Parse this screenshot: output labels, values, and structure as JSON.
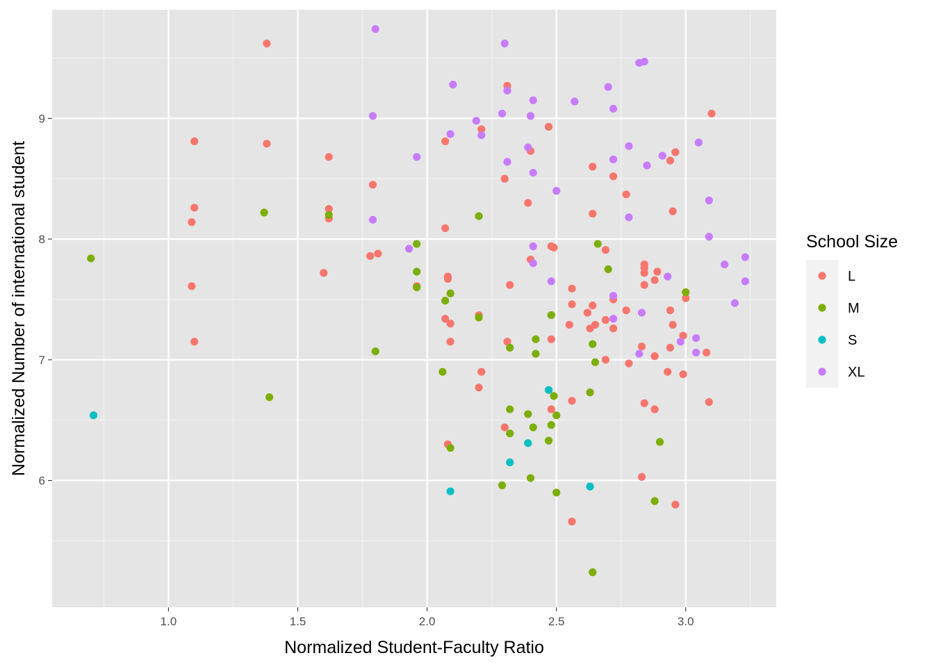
{
  "chart_data": {
    "type": "scatter",
    "xlabel": "Normalized Student-Faculty Ratio",
    "ylabel": "Normalized Number of international student",
    "xlim": [
      0.55,
      3.35
    ],
    "ylim": [
      4.95,
      9.9
    ],
    "x_ticks": [
      1.0,
      1.5,
      2.0,
      2.5,
      3.0
    ],
    "x_tick_labels": [
      "1.0",
      "1.5",
      "2.0",
      "2.5",
      "3.0"
    ],
    "y_ticks": [
      6,
      7,
      8,
      9
    ],
    "y_tick_labels": [
      "6",
      "7",
      "8",
      "9"
    ],
    "grid": true,
    "legend": {
      "title": "School Size",
      "placement": "right"
    },
    "series": [
      {
        "name": "L",
        "color": "#F8766D",
        "points": [
          [
            1.38,
            9.62
          ],
          [
            1.1,
            8.81
          ],
          [
            1.38,
            8.79
          ],
          [
            1.1,
            8.26
          ],
          [
            1.09,
            8.14
          ],
          [
            1.09,
            7.61
          ],
          [
            1.1,
            7.15
          ],
          [
            1.62,
            8.68
          ],
          [
            1.62,
            8.25
          ],
          [
            1.62,
            8.17
          ],
          [
            1.6,
            7.72
          ],
          [
            1.79,
            8.45
          ],
          [
            1.78,
            7.86
          ],
          [
            1.81,
            7.88
          ],
          [
            2.07,
            8.81
          ],
          [
            2.07,
            8.09
          ],
          [
            2.08,
            7.69
          ],
          [
            2.08,
            7.67
          ],
          [
            2.07,
            7.34
          ],
          [
            2.09,
            7.3
          ],
          [
            2.09,
            7.15
          ],
          [
            1.96,
            7.61
          ],
          [
            2.08,
            6.3
          ],
          [
            2.21,
            8.91
          ],
          [
            2.2,
            7.37
          ],
          [
            2.21,
            6.9
          ],
          [
            2.2,
            6.77
          ],
          [
            2.31,
            9.27
          ],
          [
            2.3,
            8.5
          ],
          [
            2.32,
            7.62
          ],
          [
            2.31,
            7.15
          ],
          [
            2.3,
            6.44
          ],
          [
            2.4,
            8.73
          ],
          [
            2.39,
            8.3
          ],
          [
            2.4,
            7.83
          ],
          [
            2.47,
            8.93
          ],
          [
            2.48,
            7.94
          ],
          [
            2.49,
            7.93
          ],
          [
            2.48,
            7.37
          ],
          [
            2.48,
            7.17
          ],
          [
            2.48,
            6.59
          ],
          [
            2.56,
            7.59
          ],
          [
            2.56,
            7.46
          ],
          [
            2.55,
            7.29
          ],
          [
            2.56,
            6.66
          ],
          [
            2.56,
            5.66
          ],
          [
            2.64,
            8.6
          ],
          [
            2.64,
            8.21
          ],
          [
            2.62,
            7.39
          ],
          [
            2.64,
            7.45
          ],
          [
            2.63,
            7.26
          ],
          [
            2.65,
            7.29
          ],
          [
            2.69,
            7.91
          ],
          [
            2.69,
            7.33
          ],
          [
            2.69,
            7.0
          ],
          [
            2.72,
            8.52
          ],
          [
            2.72,
            7.5
          ],
          [
            2.72,
            7.26
          ],
          [
            2.77,
            8.37
          ],
          [
            2.77,
            7.41
          ],
          [
            2.78,
            6.97
          ],
          [
            2.84,
            7.79
          ],
          [
            2.84,
            7.76
          ],
          [
            2.84,
            7.72
          ],
          [
            2.84,
            7.62
          ],
          [
            2.83,
            7.11
          ],
          [
            2.84,
            6.64
          ],
          [
            2.83,
            6.03
          ],
          [
            2.89,
            7.73
          ],
          [
            2.88,
            7.66
          ],
          [
            2.88,
            7.03
          ],
          [
            2.88,
            6.59
          ],
          [
            2.96,
            8.72
          ],
          [
            2.94,
            8.65
          ],
          [
            2.95,
            8.23
          ],
          [
            2.94,
            7.41
          ],
          [
            2.95,
            7.29
          ],
          [
            2.94,
            7.1
          ],
          [
            2.93,
            6.9
          ],
          [
            2.96,
            5.8
          ],
          [
            3.0,
            7.51
          ],
          [
            2.99,
            7.2
          ],
          [
            2.99,
            6.88
          ],
          [
            3.1,
            9.04
          ],
          [
            3.08,
            7.06
          ],
          [
            3.09,
            6.65
          ]
        ]
      },
      {
        "name": "M",
        "color": "#7CAE00",
        "points": [
          [
            0.7,
            7.84
          ],
          [
            1.37,
            8.22
          ],
          [
            1.39,
            6.69
          ],
          [
            1.62,
            8.2
          ],
          [
            1.8,
            7.07
          ],
          [
            1.96,
            7.96
          ],
          [
            1.96,
            7.73
          ],
          [
            1.96,
            7.6
          ],
          [
            2.07,
            7.49
          ],
          [
            2.09,
            7.55
          ],
          [
            2.06,
            6.9
          ],
          [
            2.09,
            6.27
          ],
          [
            2.2,
            8.19
          ],
          [
            2.2,
            7.35
          ],
          [
            2.32,
            7.1
          ],
          [
            2.32,
            6.59
          ],
          [
            2.32,
            6.39
          ],
          [
            2.29,
            5.96
          ],
          [
            2.42,
            7.17
          ],
          [
            2.42,
            7.05
          ],
          [
            2.39,
            6.55
          ],
          [
            2.41,
            6.44
          ],
          [
            2.4,
            6.02
          ],
          [
            2.48,
            7.37
          ],
          [
            2.49,
            6.7
          ],
          [
            2.48,
            6.46
          ],
          [
            2.5,
            6.54
          ],
          [
            2.47,
            6.33
          ],
          [
            2.5,
            5.9
          ],
          [
            2.66,
            7.96
          ],
          [
            2.64,
            7.13
          ],
          [
            2.65,
            6.98
          ],
          [
            2.63,
            6.73
          ],
          [
            2.64,
            5.24
          ],
          [
            2.7,
            7.75
          ],
          [
            2.9,
            6.32
          ],
          [
            2.88,
            5.83
          ],
          [
            3.0,
            7.56
          ]
        ]
      },
      {
        "name": "S",
        "color": "#00BFC4",
        "points": [
          [
            0.71,
            6.54
          ],
          [
            2.09,
            5.91
          ],
          [
            2.32,
            6.15
          ],
          [
            2.39,
            6.31
          ],
          [
            2.47,
            6.75
          ],
          [
            2.63,
            5.95
          ]
        ]
      },
      {
        "name": "XL",
        "color": "#C77CFF",
        "points": [
          [
            1.8,
            9.74
          ],
          [
            1.79,
            9.02
          ],
          [
            1.79,
            8.16
          ],
          [
            1.93,
            7.92
          ],
          [
            1.96,
            8.68
          ],
          [
            2.1,
            9.28
          ],
          [
            2.09,
            8.87
          ],
          [
            2.19,
            8.98
          ],
          [
            2.21,
            8.86
          ],
          [
            2.3,
            9.62
          ],
          [
            2.31,
            9.23
          ],
          [
            2.29,
            9.04
          ],
          [
            2.31,
            8.64
          ],
          [
            2.41,
            9.15
          ],
          [
            2.4,
            9.02
          ],
          [
            2.39,
            8.76
          ],
          [
            2.41,
            8.55
          ],
          [
            2.41,
            7.94
          ],
          [
            2.41,
            7.8
          ],
          [
            2.5,
            8.4
          ],
          [
            2.48,
            7.65
          ],
          [
            2.57,
            9.14
          ],
          [
            2.7,
            9.26
          ],
          [
            2.72,
            9.08
          ],
          [
            2.72,
            8.66
          ],
          [
            2.72,
            7.53
          ],
          [
            2.72,
            7.34
          ],
          [
            2.78,
            8.77
          ],
          [
            2.78,
            8.18
          ],
          [
            2.82,
            9.46
          ],
          [
            2.84,
            9.47
          ],
          [
            2.85,
            8.61
          ],
          [
            2.83,
            7.39
          ],
          [
            2.82,
            7.05
          ],
          [
            2.91,
            8.69
          ],
          [
            2.93,
            7.69
          ],
          [
            2.98,
            7.15
          ],
          [
            3.05,
            8.8
          ],
          [
            3.04,
            7.18
          ],
          [
            3.04,
            7.06
          ],
          [
            3.09,
            8.32
          ],
          [
            3.09,
            8.02
          ],
          [
            3.15,
            7.79
          ],
          [
            3.19,
            7.47
          ],
          [
            3.23,
            7.85
          ],
          [
            3.23,
            7.65
          ]
        ]
      }
    ]
  }
}
